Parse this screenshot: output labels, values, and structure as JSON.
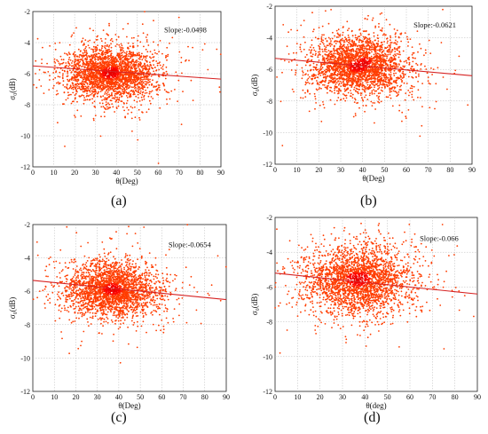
{
  "chart_data": [
    {
      "type": "scatter",
      "panel": "a",
      "caption": "(a)",
      "xlabel": "θ(Deg)",
      "ylabel": "σ₀(dB)",
      "xlim": [
        0,
        90
      ],
      "ylim": [
        -12,
        -2
      ],
      "xticks": [
        0,
        10,
        20,
        30,
        40,
        50,
        60,
        70,
        80,
        90
      ],
      "yticks": [
        -2,
        -4,
        -6,
        -8,
        -10,
        -12
      ],
      "grid": true,
      "annotation": "Slope:-0.0498",
      "cluster": {
        "center_x": 37,
        "center_y": -6.0,
        "spread_x": 11,
        "spread_y": 0.85,
        "points": 2600,
        "hotspots": [
          [
            36,
            -6.0
          ],
          [
            38.5,
            -5.9
          ]
        ]
      },
      "fit_line": {
        "x": [
          0,
          90
        ],
        "y": [
          -5.5,
          -6.35
        ]
      }
    },
    {
      "type": "scatter",
      "panel": "b",
      "caption": "(b)",
      "xlabel": "θ(Deg)",
      "ylabel": "σ₀(dB)",
      "xlim": [
        0,
        90
      ],
      "ylim": [
        -12,
        -2
      ],
      "xticks": [
        0,
        10,
        20,
        30,
        40,
        50,
        60,
        70,
        80,
        90
      ],
      "yticks": [
        -2,
        -4,
        -6,
        -8,
        -10,
        -12
      ],
      "grid": true,
      "annotation": "Slope:-0.0621",
      "cluster": {
        "center_x": 38,
        "center_y": -5.8,
        "spread_x": 11,
        "spread_y": 0.9,
        "points": 2600,
        "hotspots": [
          [
            37,
            -5.8
          ],
          [
            41,
            -5.6
          ]
        ]
      },
      "fit_line": {
        "x": [
          0,
          90
        ],
        "y": [
          -5.3,
          -6.4
        ]
      }
    },
    {
      "type": "scatter",
      "panel": "c",
      "caption": "(c)",
      "xlabel": "θ(Deg)",
      "ylabel": "σ₀(dB)",
      "xlim": [
        0,
        90
      ],
      "ylim": [
        -12,
        -2
      ],
      "xticks": [
        0,
        10,
        20,
        30,
        40,
        50,
        60,
        70,
        80,
        90
      ],
      "yticks": [
        -2,
        -4,
        -6,
        -8,
        -10,
        -12
      ],
      "grid": true,
      "annotation": "Slope:-0.0654",
      "cluster": {
        "center_x": 37,
        "center_y": -5.9,
        "spread_x": 11,
        "spread_y": 0.8,
        "points": 2600,
        "hotspots": [
          [
            37,
            -5.85
          ]
        ]
      },
      "fit_line": {
        "x": [
          0,
          90
        ],
        "y": [
          -5.35,
          -6.5
        ]
      }
    },
    {
      "type": "scatter",
      "panel": "d",
      "caption": "(d)",
      "xlabel": "θ(deg)",
      "ylabel": "σ₀(dB)",
      "xlim": [
        0,
        90
      ],
      "ylim": [
        -12,
        -2
      ],
      "xticks": [
        0,
        10,
        20,
        30,
        40,
        50,
        60,
        70,
        80,
        90
      ],
      "yticks": [
        -2,
        -4,
        -6,
        -8,
        -10,
        -12
      ],
      "grid": true,
      "annotation": "Slope:-0.066",
      "cluster": {
        "center_x": 37,
        "center_y": -5.6,
        "spread_x": 12,
        "spread_y": 0.95,
        "points": 2600,
        "hotspots": [
          [
            35,
            -5.5
          ],
          [
            39,
            -5.45
          ]
        ]
      },
      "fit_line": {
        "x": [
          0,
          90
        ],
        "y": [
          -5.2,
          -6.4
        ]
      }
    }
  ]
}
